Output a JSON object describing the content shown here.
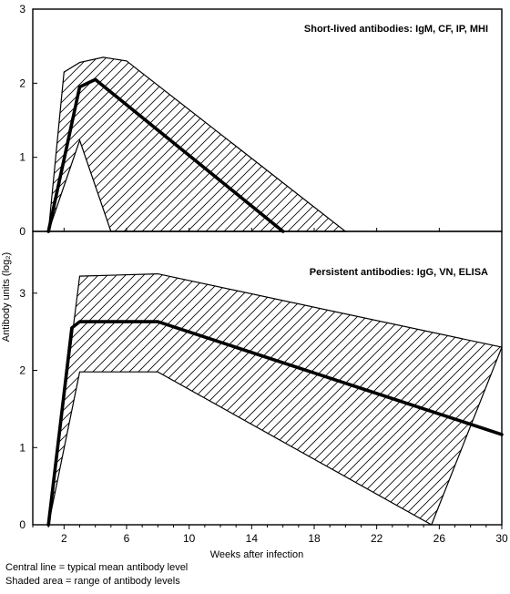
{
  "chart_data": [
    {
      "type": "area",
      "title": "Short-lived antibodies: IgM, CF, IP, MHI",
      "ylim": [
        0,
        3
      ],
      "y_ticks": [
        "0",
        "1",
        "2",
        "3"
      ],
      "xlim": [
        0,
        30
      ],
      "grid": false,
      "range_upper": [
        [
          1,
          0
        ],
        [
          2,
          2.15
        ],
        [
          3,
          2.28
        ],
        [
          4.5,
          2.35
        ],
        [
          6,
          2.3
        ],
        [
          20,
          0
        ]
      ],
      "range_lower": [
        [
          1,
          0
        ],
        [
          3,
          1.23
        ],
        [
          5,
          0
        ]
      ],
      "series": [
        {
          "values": [
            [
              1,
              0
            ],
            [
              3,
              1.95
            ],
            [
              4,
              2.05
            ],
            [
              16,
              0
            ]
          ]
        }
      ]
    },
    {
      "type": "area",
      "title": "Persistent antibodies: IgG, VN, ELISA",
      "ylim": [
        0,
        3.8
      ],
      "y_ticks": [
        "0",
        "1",
        "2",
        "3"
      ],
      "xlim": [
        0,
        30
      ],
      "grid": false,
      "range_upper": [
        [
          1,
          0
        ],
        [
          3,
          3.22
        ],
        [
          8,
          3.25
        ],
        [
          30,
          2.3
        ]
      ],
      "range_lower": [
        [
          1,
          0
        ],
        [
          3,
          1.98
        ],
        [
          8,
          1.98
        ],
        [
          25.5,
          0
        ]
      ],
      "series": [
        {
          "values": [
            [
              1,
              0
            ],
            [
              2.5,
              2.55
            ],
            [
              3,
              2.63
            ],
            [
              8,
              2.63
            ],
            [
              30,
              1.17
            ]
          ]
        }
      ]
    }
  ],
  "x_ticks": [
    "2",
    "6",
    "10",
    "14",
    "18",
    "22",
    "26",
    "30"
  ],
  "x_tick_values": [
    2,
    6,
    10,
    14,
    18,
    22,
    26,
    30
  ],
  "xlabel": "Weeks after infection",
  "ylabel": "Antibody units (log₂)",
  "notes": [
    "Central line = typical mean antibody level",
    "Shaded area = range of antibody levels"
  ]
}
